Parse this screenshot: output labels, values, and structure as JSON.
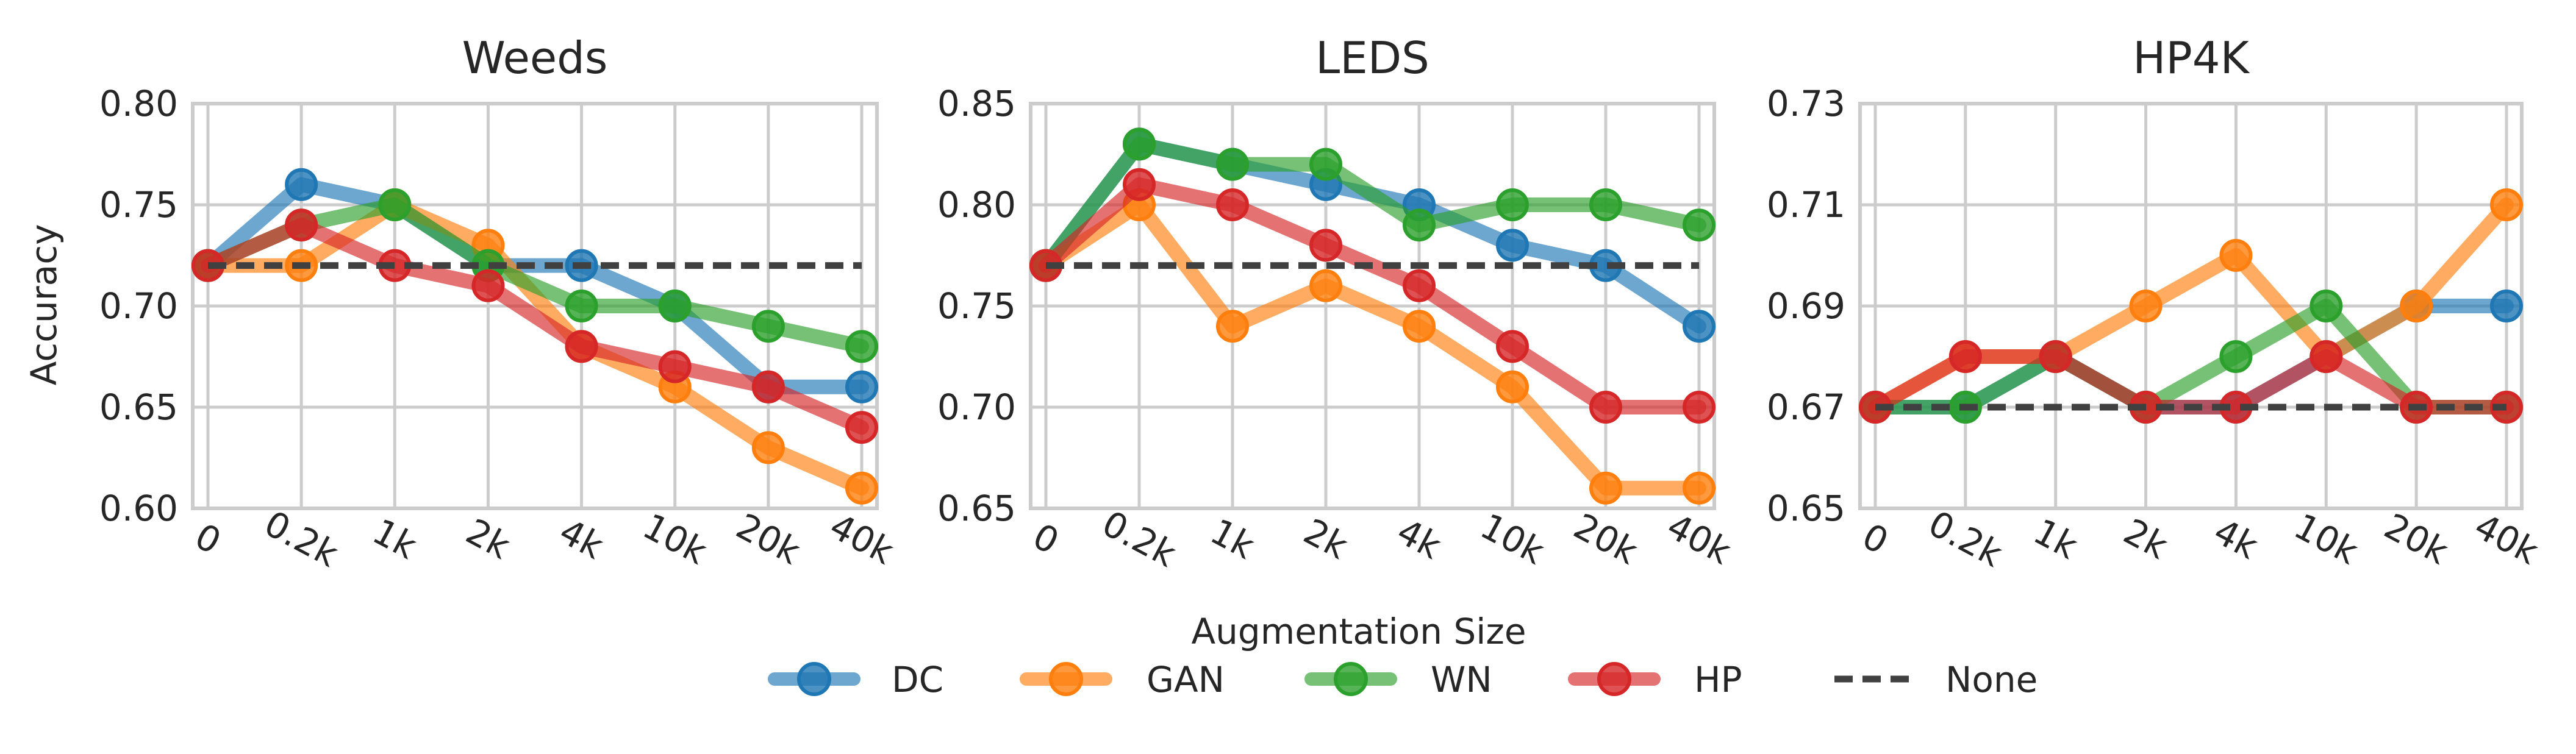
{
  "figure": {
    "ylabel": "Accuracy",
    "xlabel": "Augmentation Size"
  },
  "legend": {
    "placement": "bottom-center",
    "entries": [
      {
        "label": "DC",
        "color": "#1f77b4",
        "style": "line-marker"
      },
      {
        "label": "GAN",
        "color": "#ff7f0e",
        "style": "line-marker"
      },
      {
        "label": "WN",
        "color": "#2ca02c",
        "style": "line-marker"
      },
      {
        "label": "HP",
        "color": "#d62728",
        "style": "line-marker"
      },
      {
        "label": "None",
        "color": "#404040",
        "style": "dashed"
      }
    ]
  },
  "chart_data": [
    {
      "type": "line",
      "title": "Weeds",
      "categories": [
        "0",
        "0.2k",
        "1k",
        "2k",
        "4k",
        "10k",
        "20k",
        "40k"
      ],
      "ylim": [
        0.6,
        0.8
      ],
      "yticks": [
        "0.60",
        "0.65",
        "0.70",
        "0.75",
        "0.80"
      ],
      "grid": true,
      "series": [
        {
          "name": "DC",
          "color": "#1f77b4",
          "values": [
            0.72,
            0.76,
            0.75,
            0.72,
            0.72,
            0.7,
            0.66,
            0.66
          ]
        },
        {
          "name": "GAN",
          "color": "#ff7f0e",
          "values": [
            0.72,
            0.72,
            0.75,
            0.73,
            0.68,
            0.66,
            0.63,
            0.61
          ]
        },
        {
          "name": "WN",
          "color": "#2ca02c",
          "values": [
            0.72,
            0.74,
            0.75,
            0.72,
            0.7,
            0.7,
            0.69,
            0.68
          ]
        },
        {
          "name": "HP",
          "color": "#d62728",
          "values": [
            0.72,
            0.74,
            0.72,
            0.71,
            0.68,
            0.67,
            0.66,
            0.64
          ]
        }
      ],
      "baseline": {
        "name": "None",
        "value": 0.72
      }
    },
    {
      "type": "line",
      "title": "LEDS",
      "categories": [
        "0",
        "0.2k",
        "1k",
        "2k",
        "4k",
        "10k",
        "20k",
        "40k"
      ],
      "ylim": [
        0.65,
        0.85
      ],
      "yticks": [
        "0.65",
        "0.70",
        "0.75",
        "0.80",
        "0.85"
      ],
      "grid": true,
      "series": [
        {
          "name": "DC",
          "color": "#1f77b4",
          "values": [
            0.77,
            0.83,
            0.82,
            0.81,
            0.8,
            0.78,
            0.77,
            0.74
          ]
        },
        {
          "name": "GAN",
          "color": "#ff7f0e",
          "values": [
            0.77,
            0.8,
            0.74,
            0.76,
            0.74,
            0.71,
            0.66,
            0.66
          ]
        },
        {
          "name": "WN",
          "color": "#2ca02c",
          "values": [
            0.77,
            0.83,
            0.82,
            0.82,
            0.79,
            0.8,
            0.8,
            0.79
          ]
        },
        {
          "name": "HP",
          "color": "#d62728",
          "values": [
            0.77,
            0.81,
            0.8,
            0.78,
            0.76,
            0.73,
            0.7,
            0.7
          ]
        }
      ],
      "baseline": {
        "name": "None",
        "value": 0.77
      }
    },
    {
      "type": "line",
      "title": "HP4K",
      "categories": [
        "0",
        "0.2k",
        "1k",
        "2k",
        "4k",
        "10k",
        "20k",
        "40k"
      ],
      "ylim": [
        0.65,
        0.73
      ],
      "yticks": [
        "0.65",
        "0.67",
        "0.69",
        "0.71",
        "0.73"
      ],
      "grid": true,
      "series": [
        {
          "name": "DC",
          "color": "#1f77b4",
          "values": [
            0.67,
            0.67,
            0.68,
            0.67,
            0.67,
            0.68,
            0.69,
            0.69
          ]
        },
        {
          "name": "GAN",
          "color": "#ff7f0e",
          "values": [
            0.67,
            0.68,
            0.68,
            0.69,
            0.7,
            0.68,
            0.69,
            0.71
          ]
        },
        {
          "name": "WN",
          "color": "#2ca02c",
          "values": [
            0.67,
            0.67,
            0.68,
            0.67,
            0.68,
            0.69,
            0.67,
            0.67
          ]
        },
        {
          "name": "HP",
          "color": "#d62728",
          "values": [
            0.67,
            0.68,
            0.68,
            0.67,
            0.67,
            0.68,
            0.67,
            0.67
          ]
        }
      ],
      "baseline": {
        "name": "None",
        "value": 0.67
      }
    }
  ]
}
